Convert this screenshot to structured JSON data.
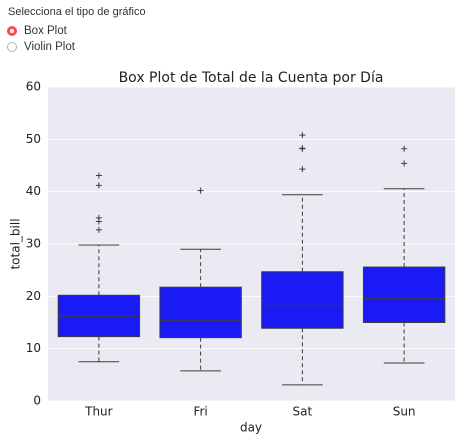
{
  "radio": {
    "label": "Selecciona el tipo de gráfico",
    "options": [
      "Box Plot",
      "Violin Plot"
    ],
    "selected": 0
  },
  "chart_data": {
    "type": "box",
    "title": "Box Plot de Total de la Cuenta por Día",
    "x_label": "day",
    "y_label": "total_bill",
    "categories": [
      "Thur",
      "Fri",
      "Sat",
      "Sun"
    ],
    "color": "#1a1af5",
    "boxes": [
      {
        "low": 7.5,
        "q1": 12.3,
        "median": 16.2,
        "q3": 20.2,
        "high": 29.8,
        "outliers": [
          43.1,
          41.2,
          35.0,
          34.3,
          32.7
        ]
      },
      {
        "low": 5.75,
        "q1": 12.1,
        "median": 15.4,
        "q3": 21.75,
        "high": 29.0,
        "outliers": [
          40.2
        ]
      },
      {
        "low": 3.07,
        "q1": 13.9,
        "median": 18.2,
        "q3": 24.7,
        "high": 39.4,
        "outliers": [
          50.8,
          48.3,
          48.2,
          44.3
        ]
      },
      {
        "low": 7.25,
        "q1": 15.0,
        "median": 19.6,
        "q3": 25.6,
        "high": 40.55,
        "outliers": [
          48.2,
          45.4
        ]
      }
    ],
    "ylim": [
      0,
      60
    ],
    "yticks": [
      0,
      10,
      20,
      30,
      40,
      50,
      60
    ],
    "grid": true
  }
}
